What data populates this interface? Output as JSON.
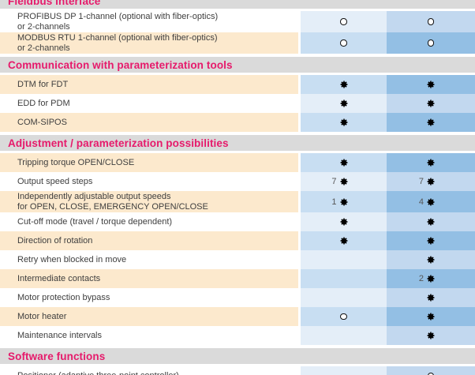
{
  "document": {
    "kind": "feature-comparison-table",
    "columns": 2
  },
  "icons": {
    "filled_symbol": "✱",
    "open_symbol": "○"
  },
  "colors": {
    "page_bg": "#ffffff",
    "accent": "#e61a6b",
    "section_band": "#dadada",
    "cream_row": "#fce9cd",
    "col1_on_white": "#e4eef8",
    "col1_on_cream": "#c8def2",
    "col2_on_white": "#c2d8ef",
    "col2_on_cream": "#93bfe4",
    "label_text": "#3e3e3e",
    "count_text": "#565656"
  },
  "sections": [
    {
      "title": "Fieldbus interface",
      "clipped_top": true,
      "rows": [
        {
          "lines": [
            "PROFIBUS DP 1-channel (optional with fiber-optics)",
            "or 2-channels"
          ],
          "shade": "white",
          "cells": [
            {
              "symbol": "open"
            },
            {
              "symbol": "open"
            }
          ]
        },
        {
          "lines": [
            "MODBUS RTU 1-channel (optional with fiber-optics)",
            "or 2-channels"
          ],
          "shade": "cream",
          "cells": [
            {
              "symbol": "open"
            },
            {
              "symbol": "open"
            }
          ]
        }
      ]
    },
    {
      "title": "Communication with parameterization tools",
      "clipped_top": false,
      "rows": [
        {
          "lines": [
            "DTM for FDT"
          ],
          "shade": "cream",
          "cells": [
            {
              "symbol": "filled"
            },
            {
              "symbol": "filled"
            }
          ]
        },
        {
          "lines": [
            "EDD for PDM"
          ],
          "shade": "white",
          "cells": [
            {
              "symbol": "filled"
            },
            {
              "symbol": "filled"
            }
          ]
        },
        {
          "lines": [
            "COM-SIPOS"
          ],
          "shade": "cream",
          "cells": [
            {
              "symbol": "filled"
            },
            {
              "symbol": "filled"
            }
          ]
        }
      ]
    },
    {
      "title": "Adjustment / parameterization possibilities",
      "clipped_top": false,
      "rows": [
        {
          "lines": [
            "Tripping torque OPEN/CLOSE"
          ],
          "shade": "cream",
          "cells": [
            {
              "symbol": "filled"
            },
            {
              "symbol": "filled"
            }
          ]
        },
        {
          "lines": [
            "Output speed steps"
          ],
          "shade": "white",
          "cells": [
            {
              "num": "7",
              "symbol": "filled"
            },
            {
              "num": "7",
              "symbol": "filled"
            }
          ]
        },
        {
          "lines": [
            "Independently adjustable output speeds",
            "for OPEN, CLOSE, EMERGENCY OPEN/CLOSE"
          ],
          "shade": "cream",
          "cells": [
            {
              "num": "1",
              "symbol": "filled"
            },
            {
              "num": "4",
              "symbol": "filled"
            }
          ]
        },
        {
          "lines": [
            "Cut-off mode (travel / torque dependent)"
          ],
          "shade": "white",
          "cells": [
            {
              "symbol": "filled"
            },
            {
              "symbol": "filled"
            }
          ]
        },
        {
          "lines": [
            "Direction of rotation"
          ],
          "shade": "cream",
          "cells": [
            {
              "symbol": "filled"
            },
            {
              "symbol": "filled"
            }
          ]
        },
        {
          "lines": [
            "Retry when blocked in move"
          ],
          "shade": "white",
          "cells": [
            null,
            {
              "symbol": "filled"
            }
          ]
        },
        {
          "lines": [
            "Intermediate contacts"
          ],
          "shade": "cream",
          "cells": [
            null,
            {
              "num": "2",
              "symbol": "filled"
            }
          ]
        },
        {
          "lines": [
            "Motor protection bypass"
          ],
          "shade": "white",
          "cells": [
            null,
            {
              "symbol": "filled"
            }
          ]
        },
        {
          "lines": [
            "Motor heater"
          ],
          "shade": "cream",
          "cells": [
            {
              "symbol": "open"
            },
            {
              "symbol": "filled"
            }
          ]
        },
        {
          "lines": [
            "Maintenance intervals"
          ],
          "shade": "white",
          "cells": [
            null,
            {
              "symbol": "filled"
            }
          ]
        }
      ]
    },
    {
      "title": "Software functions",
      "clipped_top": false,
      "rows": [
        {
          "lines": [
            "Positioner (adaptive three-point controller)"
          ],
          "shade": "white",
          "cells": [
            null,
            {
              "symbol": "open"
            }
          ]
        }
      ]
    }
  ]
}
